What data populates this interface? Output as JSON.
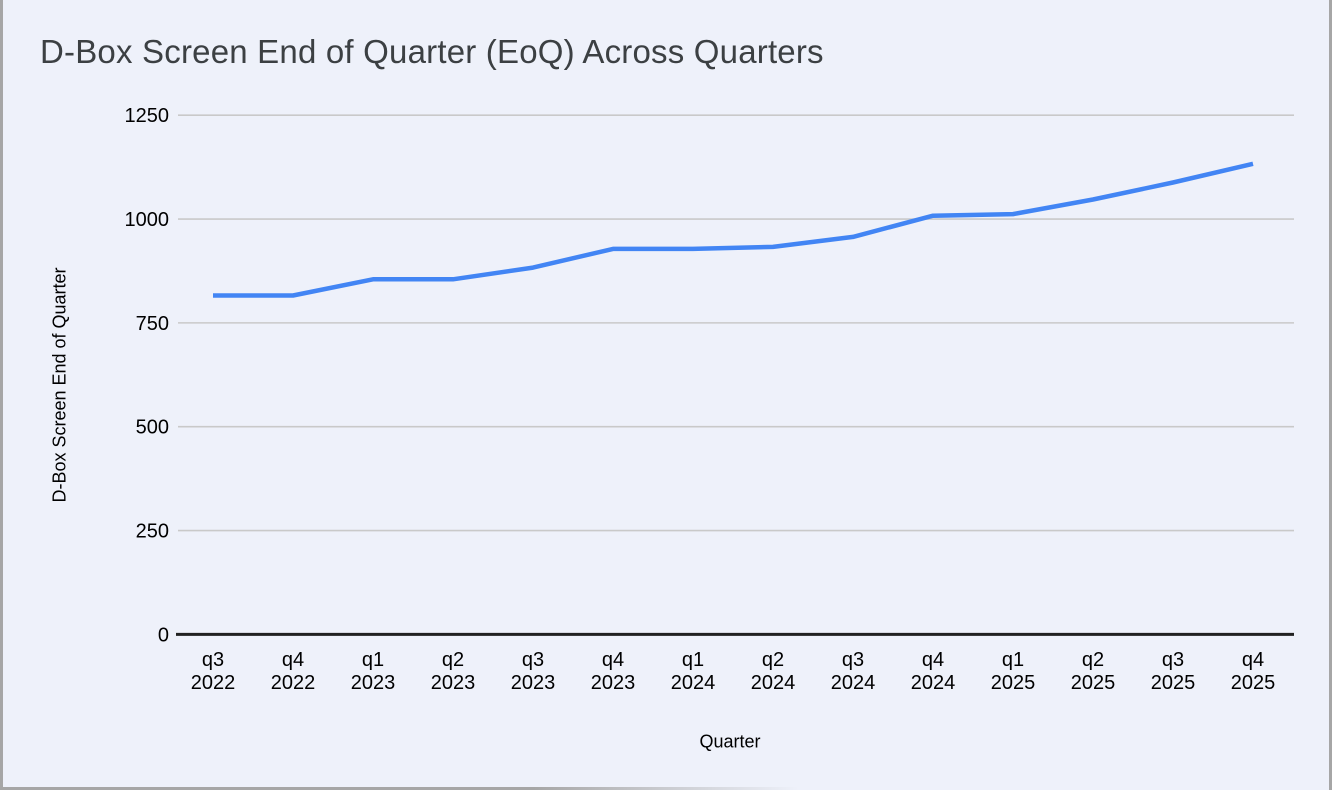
{
  "chart_data": {
    "type": "line",
    "title": "D-Box Screen End of Quarter (EoQ) Across Quarters",
    "xlabel": "Quarter",
    "ylabel": "D-Box Screen End of Quarter",
    "categories": [
      "q3 2022",
      "q4 2022",
      "q1 2023",
      "q2 2023",
      "q3 2023",
      "q4 2023",
      "q1 2024",
      "q2 2024",
      "q3 2024",
      "q4 2024",
      "q1 2025",
      "q2 2025",
      "q3 2025",
      "q4 2025"
    ],
    "values": [
      816,
      816,
      855,
      855,
      883,
      928,
      928,
      933,
      957,
      1008,
      1012,
      1047,
      1088,
      1133
    ],
    "yticks": [
      0,
      250,
      500,
      750,
      1000,
      1250
    ],
    "ylim": [
      0,
      1250
    ],
    "grid": "horizontal-only",
    "legend": "none"
  },
  "style": {
    "line_color": "#4285F4",
    "gridline_color": "#C9C9C9",
    "axis_line_color": "#212121",
    "tick_label_color": "#000000",
    "title_color": "#3C4043",
    "background_color": "#EEF1FA",
    "border_color": "#A6A6A6"
  }
}
